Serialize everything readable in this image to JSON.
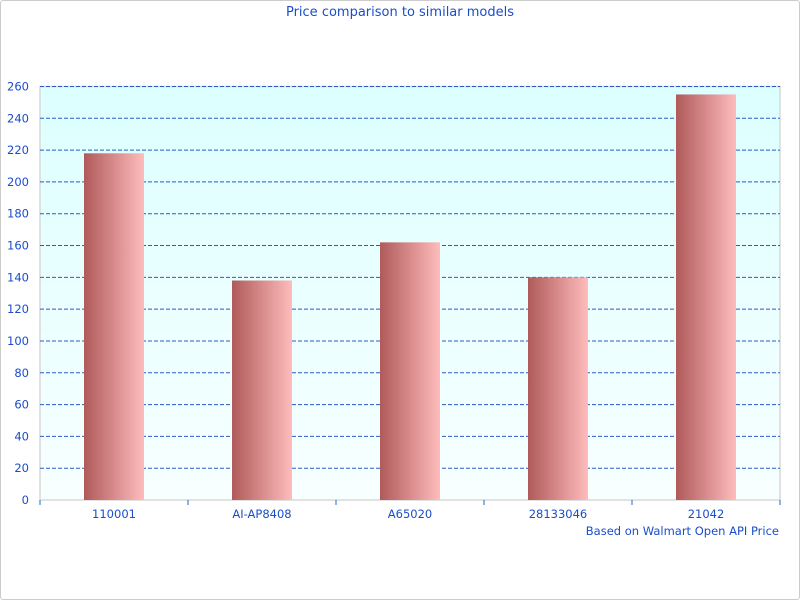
{
  "chart_data": {
    "type": "bar",
    "title": "Price comparison to similar models",
    "categories": [
      "110001",
      "AI-AP8408",
      "A65020",
      "28133046",
      "21042"
    ],
    "values": [
      218,
      138,
      162,
      140,
      255
    ],
    "ylim": [
      0,
      260
    ],
    "yticks": [
      0,
      20,
      40,
      60,
      80,
      100,
      120,
      140,
      160,
      180,
      200,
      220,
      240,
      260
    ],
    "xlabel": "",
    "ylabel": "",
    "grid": true,
    "annotation": "Based on Walmart Open API Price",
    "colors": {
      "bar_dark": "#b05a5a",
      "bar_light": "#ffbcbc",
      "plot_bg_top": "#dcffff",
      "plot_bg_bottom": "#f8ffff",
      "grid": "#2a5ac8",
      "text": "#1a4dcc"
    }
  }
}
